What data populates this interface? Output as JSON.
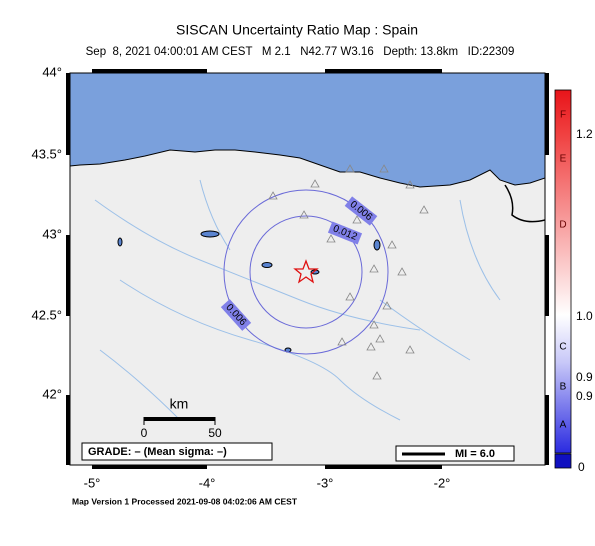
{
  "header": {
    "title": "SISCAN Uncertainty Ratio Map : Spain",
    "subtitle": "Sep  8, 2021 04:00:01 AM CEST   M 2.1   N42.77 W3.16   Depth: 13.8km   ID:22309"
  },
  "map": {
    "lat_labels": [
      "44°",
      "43.5°",
      "43°",
      "42.5°",
      "42°"
    ],
    "lon_labels": [
      "-5°",
      "-4°",
      "-3°",
      "-2°"
    ],
    "contour_labels": [
      "0.006",
      "0.012",
      "0.006"
    ]
  },
  "scale_bar": {
    "unit": "km",
    "ticks": [
      "0",
      "50"
    ]
  },
  "grade": "GRADE: – (Mean sigma: –)",
  "mi_legend": "MI = 6.0",
  "footer": "Map Version 1 Processed 2021-09-08 04:02:06 AM CEST",
  "colorbar": {
    "grades": [
      "F",
      "E",
      "D",
      "C",
      "B",
      "A"
    ],
    "values": [
      "1.2",
      "1.0",
      "0.9",
      "0.9",
      "0"
    ]
  }
}
